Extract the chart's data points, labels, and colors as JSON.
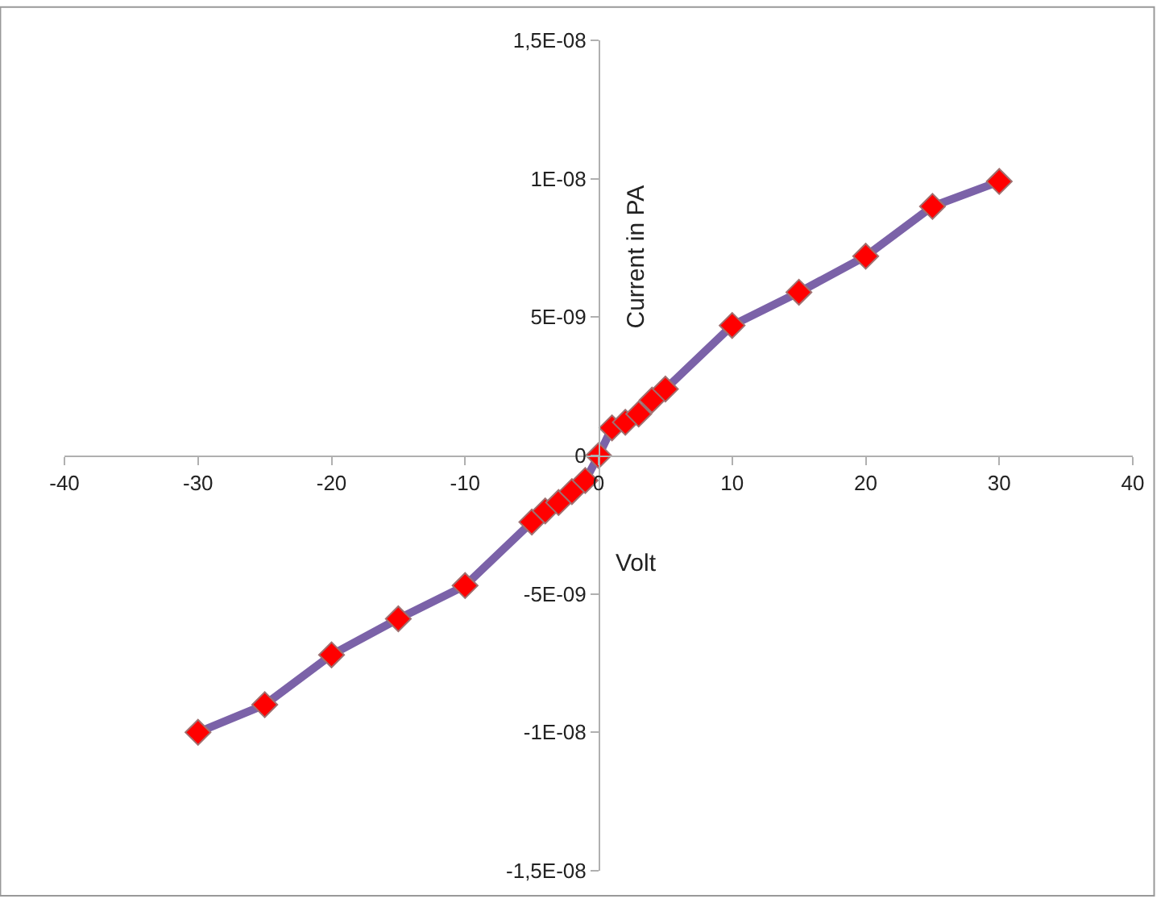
{
  "chart_data": {
    "type": "line",
    "xlabel": "Volt",
    "ylabel": "Current in PA",
    "x": [
      -30,
      -25,
      -20,
      -15,
      -10,
      -5,
      -4,
      -3,
      -2,
      -1,
      0,
      1,
      2,
      3,
      4,
      5,
      10,
      15,
      20,
      25,
      30
    ],
    "series": [
      {
        "color": "#7b62a8",
        "colors": [
          "#ff0000",
          "#ff0000",
          "#ff0000",
          "#ff0000",
          "#ff0000",
          "#ff0000",
          "#ff0000",
          "#ff0000",
          "#ff0000",
          "#ff0000",
          "#ff0000",
          "#ff0000",
          "#ff0000",
          "#ff0000",
          "#ff0000",
          "#ff0000",
          "#ff0000",
          "#ff0000",
          "#ff0000",
          "#ff0000",
          "#ff0000"
        ],
        "values": [
          -1e-08,
          -9e-09,
          -7.2e-09,
          -5.9e-09,
          -4.7e-09,
          -2.4e-09,
          -2e-09,
          -1.7e-09,
          -1.3e-09,
          -9e-10,
          0,
          1e-09,
          1.2e-09,
          1.5e-09,
          2e-09,
          2.4e-09,
          4.7e-09,
          5.9e-09,
          7.2e-09,
          9e-09,
          9.9e-09
        ]
      }
    ],
    "marker": "diamond",
    "line_style": "solid",
    "legend": false,
    "xlim": [
      -40,
      40
    ],
    "xticks": [
      -40,
      -30,
      -20,
      -10,
      0,
      10,
      20,
      30,
      40
    ],
    "ylim": [
      -1.5e-08,
      1.5e-08
    ],
    "yticks": [
      {
        "value": -1.5e-08,
        "label": "-1,5E-08"
      },
      {
        "value": -1e-08,
        "label": "-1E-08"
      },
      {
        "value": -5e-09,
        "label": "-5E-09"
      },
      {
        "value": 0,
        "label": "0"
      },
      {
        "value": 5e-09,
        "label": "5E-09"
      },
      {
        "value": 1e-08,
        "label": "1E-08"
      },
      {
        "value": 1.5e-08,
        "label": "1,5E-08"
      }
    ]
  }
}
